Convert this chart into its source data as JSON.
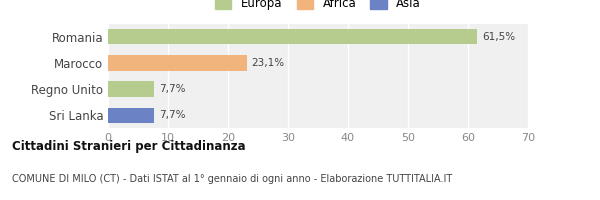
{
  "categories": [
    "Romania",
    "Marocco",
    "Regno Unito",
    "Sri Lanka"
  ],
  "values": [
    61.5,
    23.1,
    7.7,
    7.7
  ],
  "labels": [
    "61,5%",
    "23,1%",
    "7,7%",
    "7,7%"
  ],
  "bar_colors": [
    "#b5cc8e",
    "#f0b47c",
    "#b5cc8e",
    "#6b82c4"
  ],
  "legend": [
    {
      "label": "Europa",
      "color": "#b5cc8e"
    },
    {
      "label": "Africa",
      "color": "#f0b47c"
    },
    {
      "label": "Asia",
      "color": "#6b82c4"
    }
  ],
  "xlim": [
    0,
    70
  ],
  "xticks": [
    0,
    10,
    20,
    30,
    40,
    50,
    60,
    70
  ],
  "title_bold": "Cittadini Stranieri per Cittadinanza",
  "subtitle": "COMUNE DI MILO (CT) - Dati ISTAT al 1° gennaio di ogni anno - Elaborazione TUTTITALIA.IT",
  "background_color": "#ffffff",
  "plot_bg_color": "#f0f0f0"
}
